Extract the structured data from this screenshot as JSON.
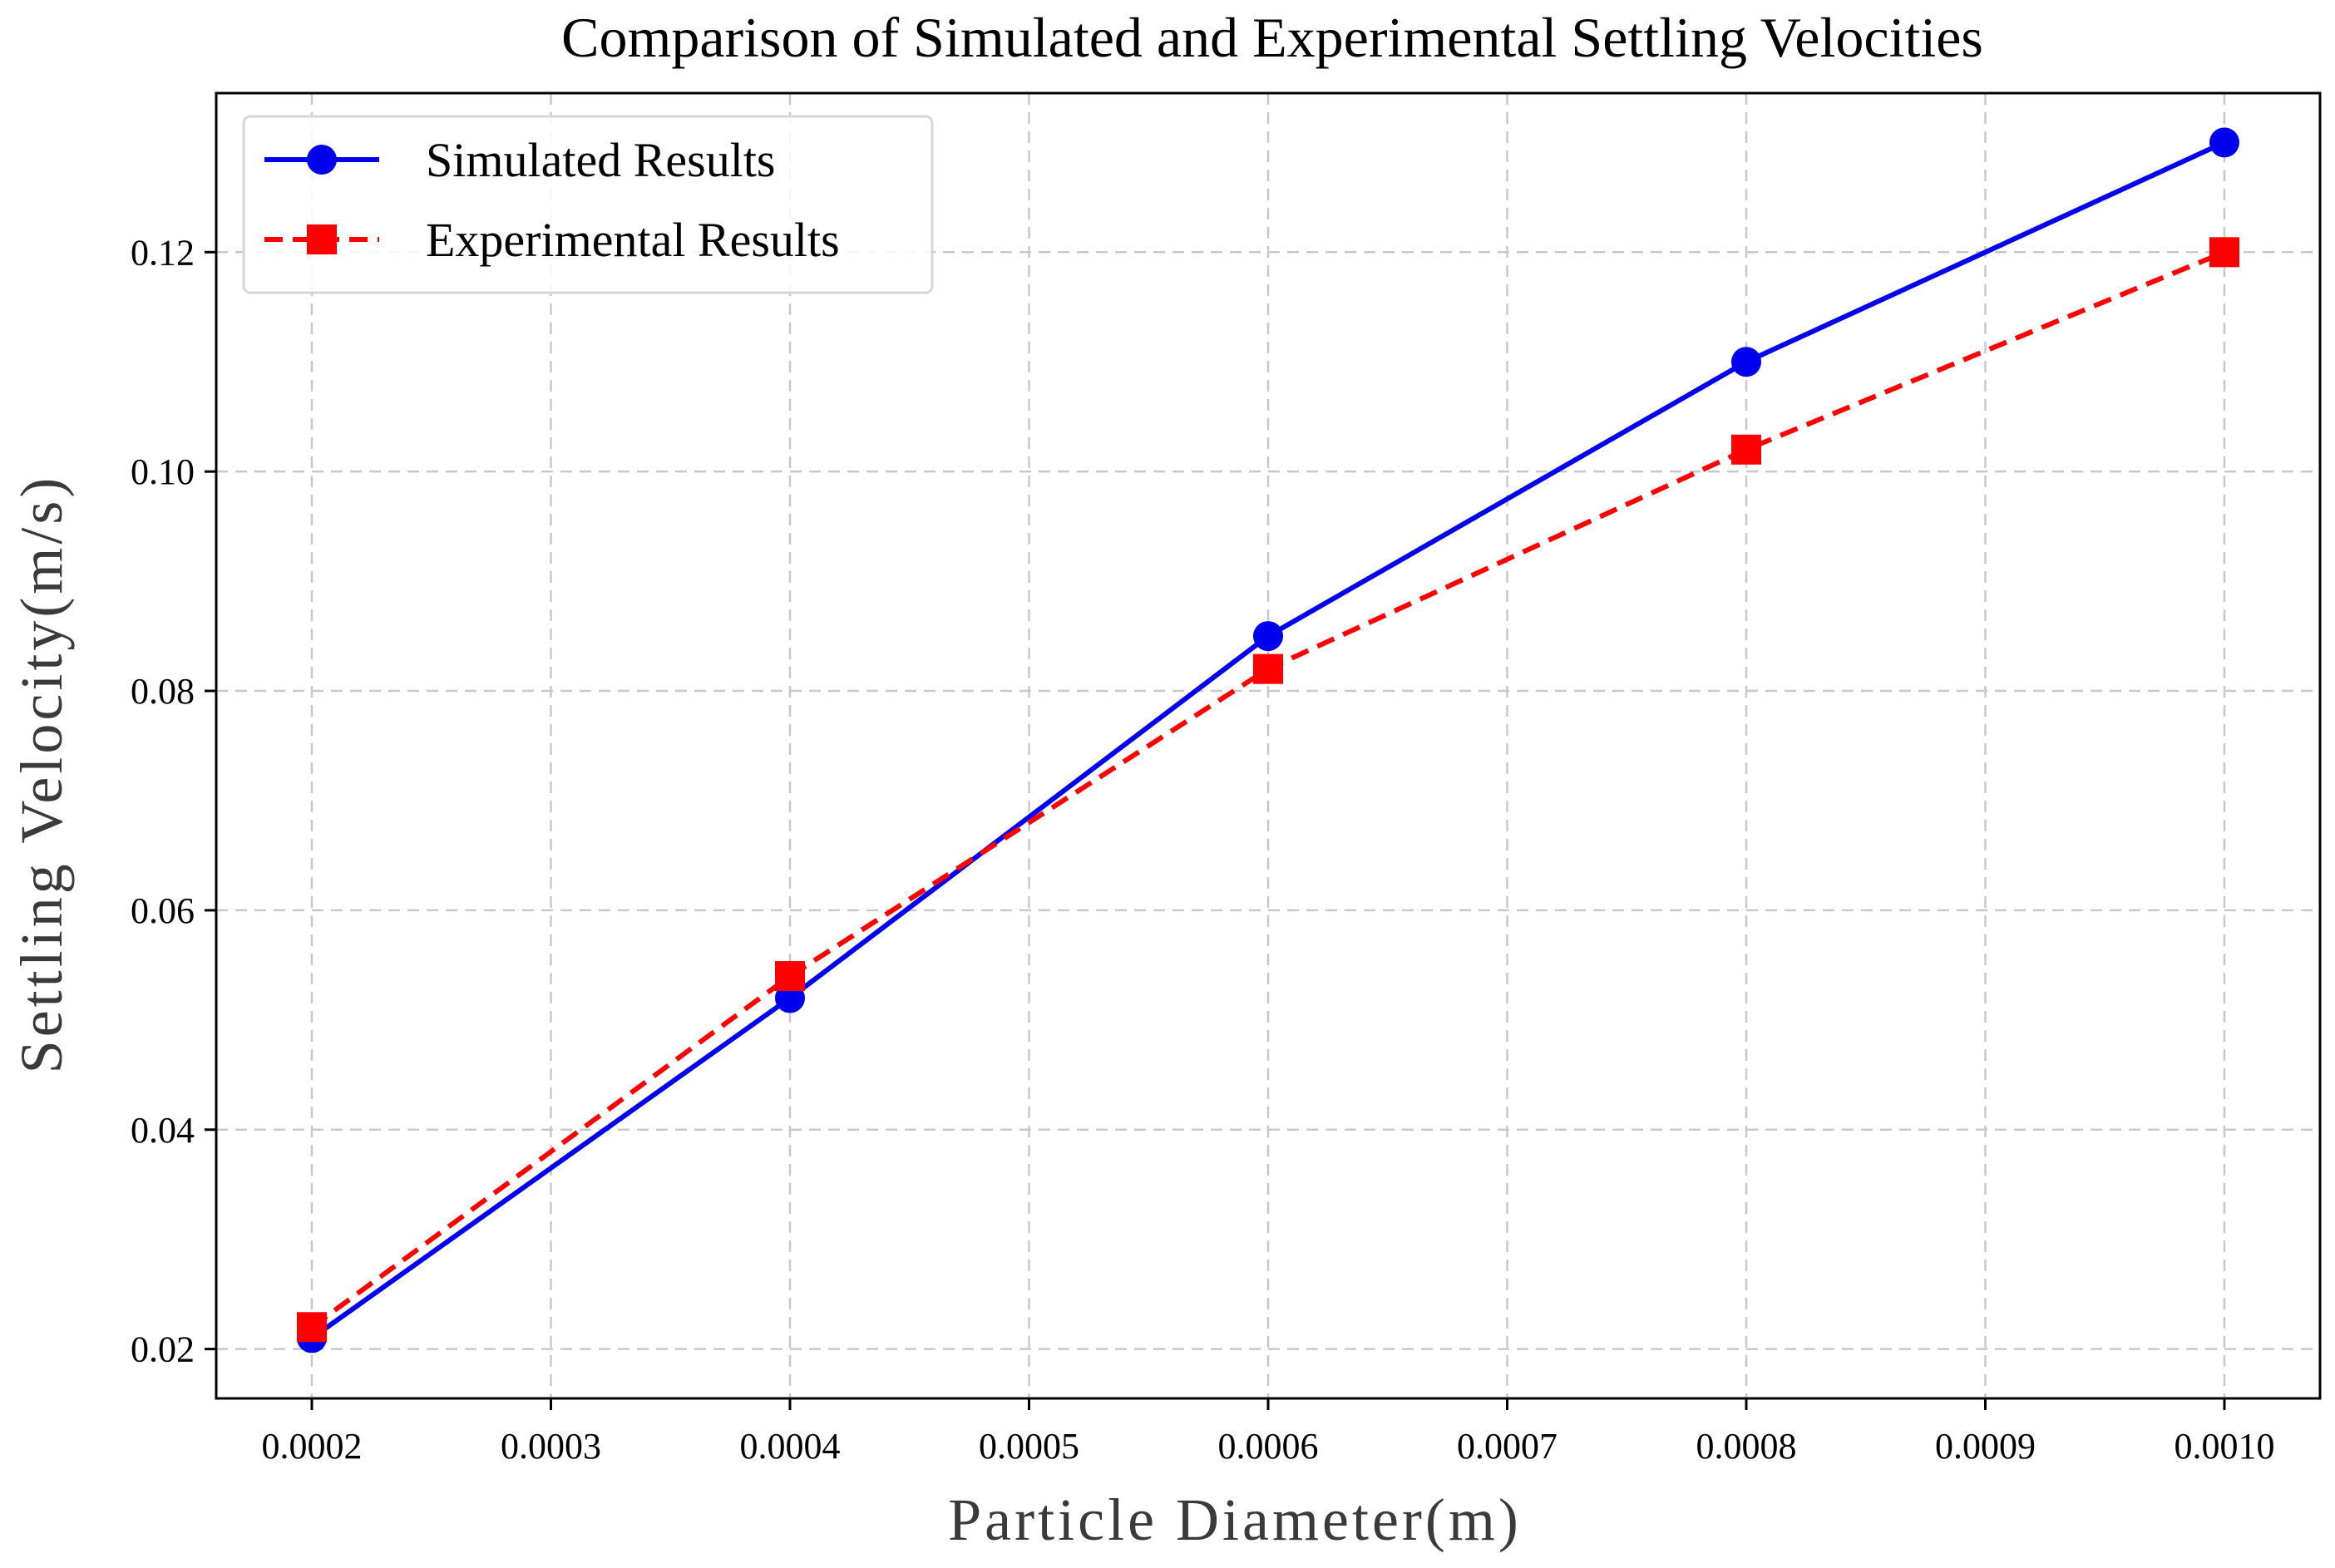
{
  "chart_data": {
    "type": "line",
    "title": "Comparison of Simulated and Experimental Settling Velocities",
    "xlabel": "Particle Diameter(m)",
    "ylabel": "Settling Velocity(m/s)",
    "x": [
      0.0002,
      0.0004,
      0.0006,
      0.0008,
      0.001
    ],
    "xlim": [
      0.00016,
      0.00104
    ],
    "ylim": [
      0.0155,
      0.1345
    ],
    "xticks": [
      0.0002,
      0.0003,
      0.0004,
      0.0005,
      0.0006,
      0.0007,
      0.0008,
      0.0009,
      0.001
    ],
    "xtick_labels": [
      "0.0002",
      "0.0003",
      "0.0004",
      "0.0005",
      "0.0006",
      "0.0007",
      "0.0008",
      "0.0009",
      "0.0010"
    ],
    "yticks": [
      0.02,
      0.04,
      0.06,
      0.08,
      0.1,
      0.12
    ],
    "ytick_labels": [
      "0.02",
      "0.04",
      "0.06",
      "0.08",
      "0.10",
      "0.12"
    ],
    "grid": true,
    "legend_position": "top-left",
    "series": [
      {
        "name": "Simulated Results",
        "values": [
          0.021,
          0.052,
          0.085,
          0.11,
          0.13
        ],
        "color": "#0000ee",
        "line_style": "solid",
        "marker": "circle"
      },
      {
        "name": "Experimental Results",
        "values": [
          0.022,
          0.054,
          0.082,
          0.102,
          0.12
        ],
        "color": "#ff0000",
        "line_style": "dashed",
        "marker": "square"
      }
    ]
  }
}
